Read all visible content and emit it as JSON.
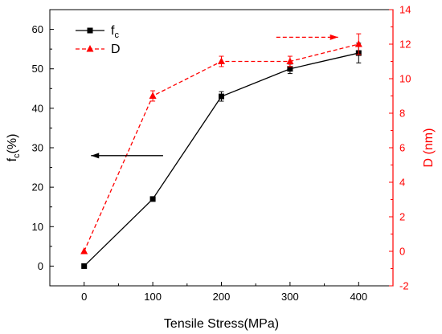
{
  "chart_data": {
    "type": "line",
    "xlabel": "Tensile Stress(MPa)",
    "x": [
      0,
      100,
      200,
      300,
      400
    ],
    "xlim": [
      -50,
      450
    ],
    "xticks": [
      0,
      100,
      200,
      300,
      400
    ],
    "ylabel_left": {
      "main": "f",
      "sub": "c",
      "tail": "(%)"
    },
    "ylim_left": [
      -5,
      65
    ],
    "yticks_left": [
      0,
      10,
      20,
      30,
      40,
      50,
      60
    ],
    "ylabel_right": "D (nm)",
    "ylim_right": [
      -2,
      14
    ],
    "yticks_right": [
      -2,
      0,
      2,
      4,
      6,
      8,
      10,
      12,
      14
    ],
    "grid": false,
    "legend_position": "top-left",
    "series": [
      {
        "name": "f",
        "name_sub": "c",
        "axis": "left",
        "color": "#000000",
        "marker": "square",
        "line_style": "solid",
        "values": [
          0,
          17,
          43,
          50,
          54
        ],
        "errors": [
          0,
          0.4,
          1.2,
          1.2,
          2.5
        ]
      },
      {
        "name": "D",
        "axis": "right",
        "color": "#ff0000",
        "marker": "triangle",
        "line_style": "dashed",
        "values": [
          0,
          9,
          11,
          11,
          12
        ],
        "errors": [
          0,
          0.3,
          0.3,
          0.3,
          0.6
        ]
      }
    ],
    "annotations": [
      {
        "type": "arrow",
        "direction": "left",
        "color": "#000000",
        "axis": "left",
        "x_from": 115,
        "x_to": 10,
        "y": 28
      },
      {
        "type": "arrow",
        "direction": "right",
        "color": "#ff0000",
        "axis": "right",
        "x_from": 280,
        "x_to": 370,
        "y": 12.4
      }
    ]
  }
}
